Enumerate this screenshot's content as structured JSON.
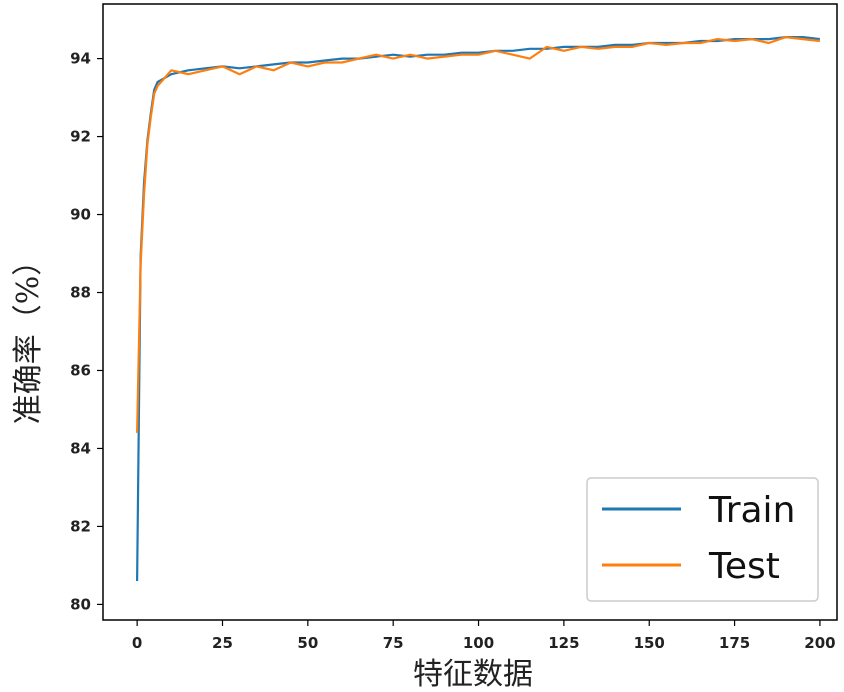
{
  "chart_data": {
    "type": "line",
    "xlabel": "特征数据",
    "ylabel": "准确率（%）",
    "xlim": [
      -10,
      205
    ],
    "ylim": [
      79.6,
      95.4
    ],
    "x_ticks": [
      0,
      25,
      50,
      75,
      100,
      125,
      150,
      175,
      200
    ],
    "y_ticks": [
      80,
      82,
      84,
      86,
      88,
      90,
      92,
      94
    ],
    "x_tick_labels": [
      "0",
      "25",
      "50",
      "75",
      "100",
      "125",
      "150",
      "175",
      "200"
    ],
    "y_tick_labels": [
      "80",
      "82",
      "84",
      "86",
      "88",
      "90",
      "92",
      "94"
    ],
    "grid": false,
    "legend_position": "lower-right",
    "series": [
      {
        "name": "Train",
        "color": "#1f77b4",
        "x": [
          0,
          1,
          2,
          3,
          4,
          5,
          6,
          8,
          10,
          15,
          20,
          25,
          30,
          35,
          40,
          45,
          50,
          55,
          60,
          65,
          70,
          75,
          80,
          85,
          90,
          95,
          100,
          105,
          110,
          115,
          120,
          125,
          130,
          135,
          140,
          145,
          150,
          155,
          160,
          165,
          170,
          175,
          180,
          185,
          190,
          195,
          200
        ],
        "values": [
          80.6,
          88.9,
          90.8,
          91.9,
          92.6,
          93.2,
          93.4,
          93.5,
          93.6,
          93.7,
          93.75,
          93.8,
          93.75,
          93.8,
          93.85,
          93.9,
          93.9,
          93.95,
          94.0,
          94.0,
          94.05,
          94.1,
          94.05,
          94.1,
          94.1,
          94.15,
          94.15,
          94.2,
          94.2,
          94.25,
          94.25,
          94.3,
          94.3,
          94.3,
          94.35,
          94.35,
          94.4,
          94.4,
          94.4,
          94.45,
          94.45,
          94.5,
          94.5,
          94.5,
          94.55,
          94.55,
          94.5
        ]
      },
      {
        "name": "Test",
        "color": "#ff7f0e",
        "x": [
          0,
          1,
          2,
          3,
          4,
          5,
          6,
          8,
          10,
          15,
          20,
          25,
          30,
          35,
          40,
          45,
          50,
          55,
          60,
          65,
          70,
          75,
          80,
          85,
          90,
          95,
          100,
          105,
          110,
          115,
          120,
          125,
          130,
          135,
          140,
          145,
          150,
          155,
          160,
          165,
          170,
          175,
          180,
          185,
          190,
          195,
          200
        ],
        "values": [
          84.4,
          88.7,
          90.5,
          91.8,
          92.5,
          93.1,
          93.3,
          93.5,
          93.7,
          93.6,
          93.7,
          93.8,
          93.6,
          93.8,
          93.7,
          93.9,
          93.8,
          93.9,
          93.9,
          94.0,
          94.1,
          94.0,
          94.1,
          94.0,
          94.05,
          94.1,
          94.1,
          94.2,
          94.1,
          94.0,
          94.3,
          94.2,
          94.3,
          94.25,
          94.3,
          94.3,
          94.4,
          94.35,
          94.4,
          94.4,
          94.5,
          94.45,
          94.5,
          94.4,
          94.55,
          94.5,
          94.45
        ]
      }
    ]
  }
}
